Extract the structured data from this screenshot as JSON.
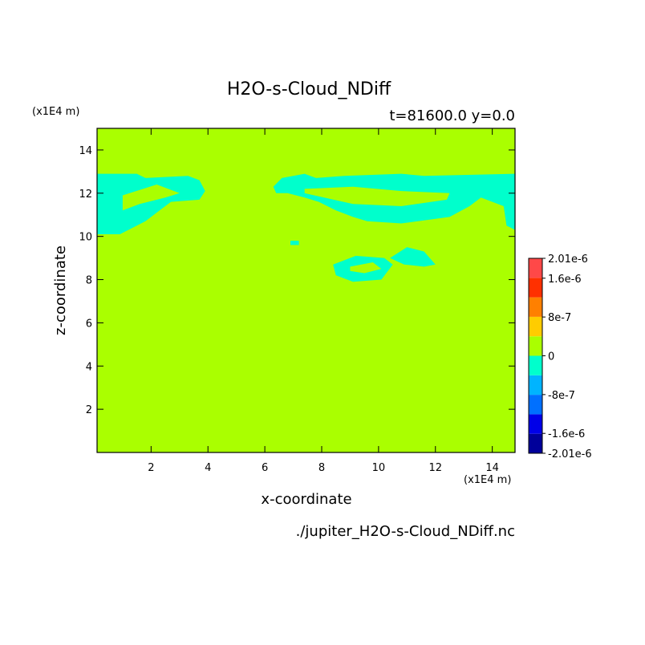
{
  "chart_data": {
    "type": "contour",
    "title": "H2O-s-Cloud_NDiff",
    "subtitle": "t=81600.0 y=0.0",
    "x_label": "x-coordinate",
    "y_label": "z-coordinate",
    "x_unit": "(x1E4 m)",
    "y_unit": "(x1E4 m)",
    "footer": "./jupiter_H2O-s-Cloud_NDiff.nc",
    "xlim": [
      0.1,
      14.8
    ],
    "ylim": [
      0,
      15
    ],
    "xticks": [
      2,
      4,
      6,
      8,
      10,
      12,
      14
    ],
    "yticks": [
      2,
      4,
      6,
      8,
      10,
      12,
      14
    ],
    "background_color": "#aaff00",
    "levels": [
      -2.01e-06,
      -1.6e-06,
      -1.2e-06,
      -8e-07,
      -4e-07,
      0,
      4e-07,
      8e-07,
      1.2e-06,
      1.6e-06,
      2.01e-06
    ],
    "colors": [
      "#00009a",
      "#0000e8",
      "#0070ff",
      "#00b4ff",
      "#00ffcc",
      "#aaff00",
      "#ffcc00",
      "#ff8000",
      "#ff3000",
      "#ff4848"
    ],
    "level_ticks": [
      {
        "value": 2.01e-06,
        "label": "2.01e-6"
      },
      {
        "value": 1.6e-06,
        "label": "1.6e-6"
      },
      {
        "value": 8e-07,
        "label": "8e-7"
      },
      {
        "value": 0,
        "label": "0"
      },
      {
        "value": -8e-07,
        "label": "-8e-7"
      },
      {
        "value": -1.6e-06,
        "label": "-1.6e-6"
      },
      {
        "value": -2.01e-06,
        "label": "-2.01e-6"
      }
    ],
    "regions": [
      {
        "color": "#00ffcc",
        "points": [
          [
            0.1,
            12.9
          ],
          [
            1.5,
            12.9
          ],
          [
            1.8,
            12.7
          ],
          [
            3.3,
            12.8
          ],
          [
            3.7,
            12.6
          ],
          [
            3.9,
            12.1
          ],
          [
            3.7,
            11.7
          ],
          [
            2.7,
            11.6
          ],
          [
            2.3,
            11.2
          ],
          [
            1.8,
            10.7
          ],
          [
            1.2,
            10.3
          ],
          [
            0.9,
            10.1
          ],
          [
            0.1,
            10.1
          ]
        ]
      },
      {
        "color": "#00ffcc",
        "points": [
          [
            6.3,
            12.3
          ],
          [
            6.6,
            12.7
          ],
          [
            7.4,
            12.9
          ],
          [
            7.8,
            12.7
          ],
          [
            8.8,
            12.8
          ],
          [
            10.8,
            12.9
          ],
          [
            11.6,
            12.8
          ],
          [
            14.8,
            12.9
          ],
          [
            14.8,
            10.3
          ],
          [
            14.5,
            10.5
          ],
          [
            14.4,
            11.4
          ],
          [
            13.6,
            11.8
          ],
          [
            13.2,
            11.4
          ],
          [
            12.5,
            10.9
          ],
          [
            10.8,
            10.6
          ],
          [
            9.6,
            10.7
          ],
          [
            9.1,
            10.9
          ],
          [
            8.5,
            11.2
          ],
          [
            7.9,
            11.6
          ],
          [
            7.4,
            11.8
          ],
          [
            6.8,
            12.0
          ],
          [
            6.4,
            12.0
          ]
        ]
      },
      {
        "color": "#00ffcc",
        "points": [
          [
            8.4,
            8.7
          ],
          [
            9.2,
            9.1
          ],
          [
            10.2,
            9.0
          ],
          [
            10.5,
            8.7
          ],
          [
            10.1,
            8.0
          ],
          [
            9.1,
            7.9
          ],
          [
            8.5,
            8.2
          ]
        ]
      },
      {
        "color": "#00ffcc",
        "points": [
          [
            10.4,
            9.0
          ],
          [
            11.0,
            9.5
          ],
          [
            11.6,
            9.3
          ],
          [
            12.0,
            8.7
          ],
          [
            11.6,
            8.6
          ],
          [
            10.9,
            8.7
          ]
        ]
      },
      {
        "color": "#00ffcc",
        "points": [
          [
            6.9,
            9.8
          ],
          [
            7.2,
            9.8
          ],
          [
            7.2,
            9.6
          ],
          [
            6.9,
            9.6
          ]
        ]
      },
      {
        "color": "#aaff00",
        "points": [
          [
            7.4,
            12.2
          ],
          [
            9.1,
            12.3
          ],
          [
            10.8,
            12.1
          ],
          [
            12.5,
            12.0
          ],
          [
            12.4,
            11.7
          ],
          [
            10.8,
            11.4
          ],
          [
            9.1,
            11.5
          ],
          [
            7.4,
            12.0
          ]
        ]
      },
      {
        "color": "#aaff00",
        "points": [
          [
            1.0,
            11.9
          ],
          [
            2.2,
            12.4
          ],
          [
            3.0,
            12.0
          ],
          [
            2.5,
            11.8
          ],
          [
            1.6,
            11.5
          ],
          [
            1.0,
            11.2
          ]
        ]
      },
      {
        "color": "#aaff00",
        "points": [
          [
            9.0,
            8.6
          ],
          [
            9.8,
            8.8
          ],
          [
            10.1,
            8.5
          ],
          [
            9.5,
            8.3
          ],
          [
            9.0,
            8.4
          ]
        ]
      }
    ]
  }
}
